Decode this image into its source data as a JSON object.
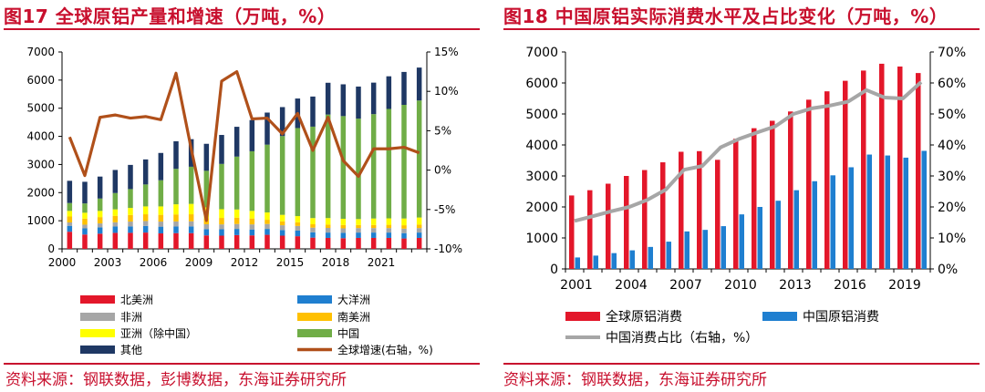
{
  "colors": {
    "brand_red": "#c8102e",
    "north_america": "#e3172a",
    "oceania": "#1f7fd0",
    "africa": "#a6a6a6",
    "south_america": "#ffc000",
    "asia_ex_china": "#ffff00",
    "china": "#70ad47",
    "other": "#1f3864",
    "growth_line": "#b0501a",
    "global_consumption": "#e3172a",
    "china_consumption": "#1f7fd0",
    "china_share": "#a6a6a6"
  },
  "left_panel": {
    "title": "图17  全球原铝产量和增速（万吨，%）",
    "source": "资料来源：钢联数据，彭博数据，东海证券研究所"
  },
  "right_panel": {
    "title": "图18  中国原铝实际消费水平及占比变化（万吨，%）",
    "source": "资料来源：钢联数据，东海证券研究所"
  },
  "chart_data": [
    {
      "type": "bar",
      "stacked": true,
      "title": "全球原铝产量和增速（万吨，%）",
      "categories": [
        "2000",
        "2001",
        "2002",
        "2003",
        "2004",
        "2005",
        "2006",
        "2007",
        "2008",
        "2009",
        "2010",
        "2011",
        "2012",
        "2013",
        "2014",
        "2015",
        "2016",
        "2017",
        "2018",
        "2019",
        "2020",
        "2021",
        "2022",
        "2023"
      ],
      "x_tick_labels": [
        "2000",
        "2003",
        "2006",
        "2009",
        "2012",
        "2015",
        "2018",
        "2021"
      ],
      "ylim": [
        0,
        7000
      ],
      "y_ticks": [
        "0",
        "1000",
        "2000",
        "3000",
        "4000",
        "5000",
        "6000",
        "7000"
      ],
      "y2lim": [
        -10,
        15
      ],
      "y2_ticks": [
        "-10%",
        "-5%",
        "0%",
        "5%",
        "10%",
        "15%"
      ],
      "series": [
        {
          "name": "北美洲",
          "values": [
            610,
            510,
            540,
            570,
            570,
            580,
            550,
            560,
            560,
            480,
            470,
            490,
            480,
            500,
            470,
            450,
            400,
            390,
            380,
            390,
            390,
            390,
            370,
            390
          ]
        },
        {
          "name": "大洋洲",
          "values": [
            210,
            220,
            225,
            225,
            230,
            235,
            240,
            235,
            240,
            225,
            230,
            220,
            210,
            210,
            200,
            200,
            190,
            190,
            190,
            190,
            190,
            190,
            190,
            190
          ]
        },
        {
          "name": "非洲",
          "values": [
            120,
            130,
            140,
            150,
            170,
            175,
            180,
            180,
            180,
            170,
            170,
            175,
            180,
            175,
            170,
            165,
            165,
            165,
            160,
            160,
            160,
            160,
            160,
            160
          ]
        },
        {
          "name": "南美洲",
          "values": [
            210,
            215,
            225,
            230,
            235,
            240,
            240,
            250,
            250,
            220,
            230,
            225,
            210,
            150,
            140,
            130,
            120,
            120,
            120,
            110,
            110,
            115,
            120,
            125
          ]
        },
        {
          "name": "亚洲（除中国）",
          "values": [
            200,
            210,
            220,
            230,
            250,
            280,
            300,
            360,
            370,
            380,
            310,
            290,
            270,
            260,
            230,
            220,
            220,
            230,
            220,
            210,
            230,
            230,
            240,
            250
          ]
        },
        {
          "name": "中国",
          "values": [
            280,
            330,
            440,
            580,
            670,
            780,
            930,
            1260,
            1320,
            1300,
            1610,
            1880,
            2120,
            2410,
            2800,
            3130,
            3250,
            3680,
            3650,
            3570,
            3710,
            3890,
            4040,
            4160
          ]
        },
        {
          "name": "其他",
          "values": [
            790,
            770,
            780,
            820,
            860,
            890,
            970,
            980,
            980,
            960,
            1030,
            1060,
            1110,
            1140,
            1030,
            1050,
            1070,
            1130,
            1130,
            1140,
            1120,
            1160,
            1170,
            1170
          ]
        },
        {
          "name": "全球增速(右轴，%)",
          "axis": "right",
          "type": "line",
          "values": [
            4.2,
            -0.7,
            6.7,
            7.0,
            6.6,
            6.8,
            6.4,
            12.3,
            2.7,
            -6.4,
            11.3,
            12.5,
            6.5,
            6.6,
            4.6,
            7.2,
            2.5,
            6.7,
            1.2,
            -0.8,
            2.7,
            2.7,
            2.9,
            2.2
          ]
        }
      ]
    },
    {
      "type": "bar",
      "title": "中国原铝实际消费水平及占比变化（万吨，%）",
      "categories": [
        "2001",
        "2002",
        "2003",
        "2004",
        "2005",
        "2006",
        "2007",
        "2008",
        "2009",
        "2010",
        "2011",
        "2012",
        "2013",
        "2014",
        "2015",
        "2016",
        "2017",
        "2018",
        "2019",
        "2020"
      ],
      "x_tick_labels": [
        "2001",
        "2004",
        "2007",
        "2010",
        "2013",
        "2016",
        "2019"
      ],
      "ylim": [
        0,
        7000
      ],
      "y_ticks": [
        "0",
        "1000",
        "2000",
        "3000",
        "4000",
        "5000",
        "6000",
        "7000"
      ],
      "y2lim": [
        0,
        70
      ],
      "y2_ticks": [
        "0%",
        "10%",
        "20%",
        "30%",
        "40%",
        "50%",
        "60%",
        "70%"
      ],
      "series": [
        {
          "name": "全球原铝消费",
          "values": [
            2370,
            2540,
            2750,
            3000,
            3190,
            3440,
            3780,
            3800,
            3520,
            4200,
            4540,
            4780,
            5080,
            5460,
            5730,
            6070,
            6400,
            6620,
            6530,
            6320
          ]
        },
        {
          "name": "中国原铝消费",
          "values": [
            370,
            430,
            510,
            600,
            710,
            880,
            1210,
            1260,
            1380,
            1760,
            2000,
            2200,
            2540,
            2830,
            3020,
            3280,
            3690,
            3660,
            3590,
            3810
          ]
        },
        {
          "name": "中国消费占比（右轴，%）",
          "axis": "right",
          "type": "line",
          "values": [
            15.5,
            17,
            18.6,
            20,
            22.3,
            25.6,
            32,
            33.2,
            39.2,
            41.9,
            44,
            46,
            50,
            51.8,
            52.7,
            54,
            57.7,
            55.3,
            55,
            60.3
          ]
        }
      ]
    }
  ]
}
